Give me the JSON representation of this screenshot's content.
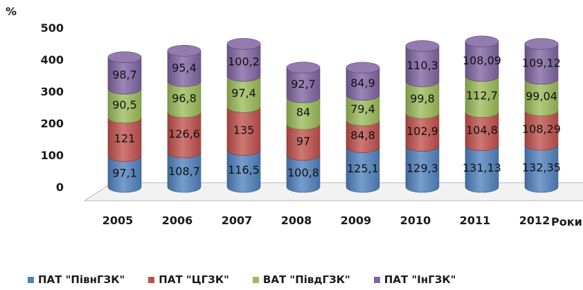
{
  "chart_data": {
    "type": "bar",
    "stacked": true,
    "style": "3d-cylinder",
    "title": "",
    "ylabel": "%",
    "xlabel": "Роки",
    "ylim": [
      0,
      500
    ],
    "yticks": [
      0,
      100,
      200,
      300,
      400,
      500
    ],
    "grid": false,
    "legend_position": "bottom",
    "categories": [
      "2005",
      "2006",
      "2007",
      "2008",
      "2009",
      "2010",
      "2011",
      "2012"
    ],
    "series": [
      {
        "name": "ПАТ \"ПівнГЗК\"",
        "color": "#4f81bd",
        "values": [
          97.1,
          108.7,
          116.5,
          100.8,
          125.1,
          129.3,
          131.13,
          132.35
        ],
        "labels": [
          "97,1",
          "108,7",
          "116,5",
          "100,8",
          "125,1",
          "129,3",
          "131,13",
          "132,35"
        ]
      },
      {
        "name": "ПАТ \"ЦГЗК\"",
        "color": "#c0504d",
        "values": [
          121,
          126.6,
          135,
          97,
          84.8,
          102.9,
          104.8,
          108.29
        ],
        "labels": [
          "121",
          "126,6",
          "135",
          "97",
          "84,8",
          "102,9",
          "104,8",
          "108,29"
        ]
      },
      {
        "name": "ВАТ \"ПівдГЗК\"",
        "color": "#9bbb59",
        "values": [
          90.5,
          96.8,
          97.4,
          84,
          79.4,
          99.8,
          112.7,
          99.04
        ],
        "labels": [
          "90,5",
          "96,8",
          "97,4",
          "84",
          "79,4",
          "99,8",
          "112,7",
          "99,04"
        ]
      },
      {
        "name": "ПАТ \"ІнГЗК\"",
        "color": "#8064a2",
        "values": [
          98.7,
          95.4,
          100.2,
          92.7,
          84.9,
          110.3,
          108.09,
          109.12
        ],
        "labels": [
          "98,7",
          "95,4",
          "100,2",
          "92,7",
          "84,9",
          "110,3",
          "108,09",
          "109,12"
        ]
      }
    ]
  }
}
